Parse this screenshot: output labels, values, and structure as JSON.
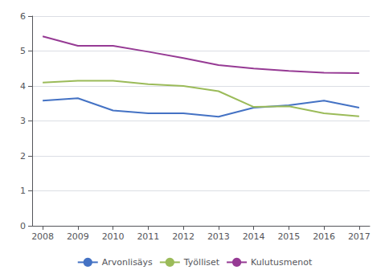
{
  "chart_data": {
    "type": "line",
    "x": [
      2008,
      2009,
      2010,
      2011,
      2012,
      2013,
      2014,
      2015,
      2016,
      2017
    ],
    "series": [
      {
        "name": "Arvonlisäys",
        "color": "#4472c4",
        "values": [
          3.58,
          3.65,
          3.3,
          3.22,
          3.22,
          3.12,
          3.38,
          3.45,
          3.58,
          3.38
        ]
      },
      {
        "name": "Työlliset",
        "color": "#9bbb59",
        "values": [
          4.1,
          4.15,
          4.15,
          4.05,
          4.0,
          3.85,
          3.4,
          3.42,
          3.22,
          3.13
        ]
      },
      {
        "name": "Kulutusmenot",
        "color": "#963a94",
        "values": [
          5.42,
          5.15,
          5.15,
          4.98,
          4.8,
          4.6,
          4.5,
          4.43,
          4.38,
          4.37
        ]
      }
    ],
    "xlim": [
      2007.7,
      2017.3
    ],
    "xticks": [
      2008,
      2009,
      2010,
      2011,
      2012,
      2013,
      2014,
      2015,
      2016,
      2017
    ],
    "ylim": [
      0,
      6
    ],
    "yticks": [
      0,
      1,
      2,
      3,
      4,
      5,
      6
    ],
    "grid": true,
    "legend": "bottom"
  }
}
